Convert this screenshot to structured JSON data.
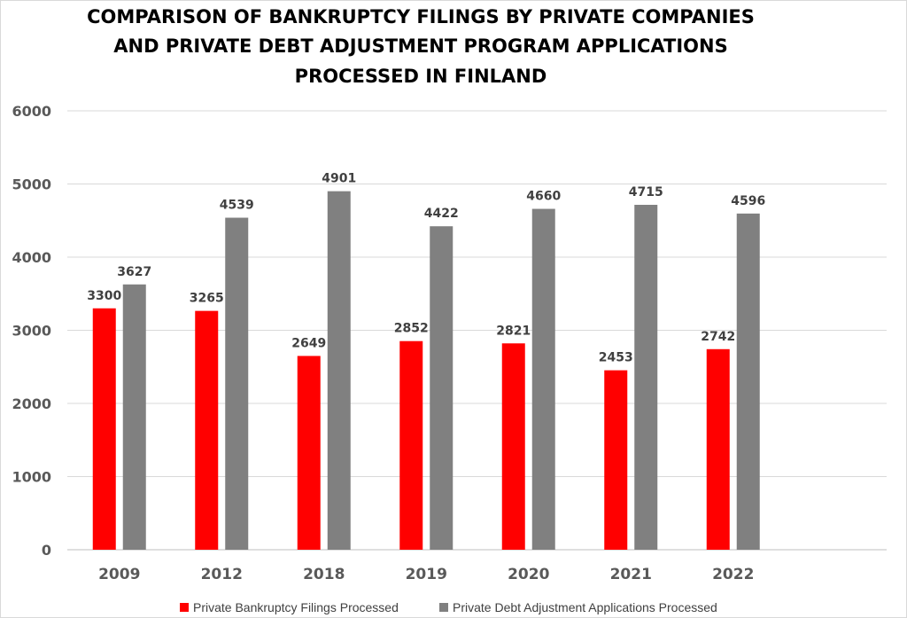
{
  "chart_data": {
    "type": "bar",
    "title_lines": [
      "COMPARISON OF BANKRUPTCY FILINGS BY PRIVATE COMPANIES",
      "AND PRIVATE DEBT  ADJUSTMENT PROGRAM APPLICATIONS",
      "PROCESSED IN FINLAND"
    ],
    "categories": [
      "2009",
      "2012",
      "2018",
      "2019",
      "2020",
      "2021",
      "2022"
    ],
    "series": [
      {
        "name": "Private Bankruptcy Filings Processed",
        "color": "#ff0000",
        "values": [
          3300,
          3265,
          2649,
          2852,
          2821,
          2453,
          2742
        ]
      },
      {
        "name": "Private  Debt Adjustment Applications Processed",
        "color": "#808080",
        "values": [
          3627,
          4539,
          4901,
          4422,
          4660,
          4715,
          4596
        ]
      }
    ],
    "ylim": [
      0,
      6000
    ],
    "yticks": [
      0,
      1000,
      2000,
      3000,
      4000,
      5000,
      6000
    ],
    "grid": true,
    "legend_position": "bottom",
    "data_labels": true
  }
}
